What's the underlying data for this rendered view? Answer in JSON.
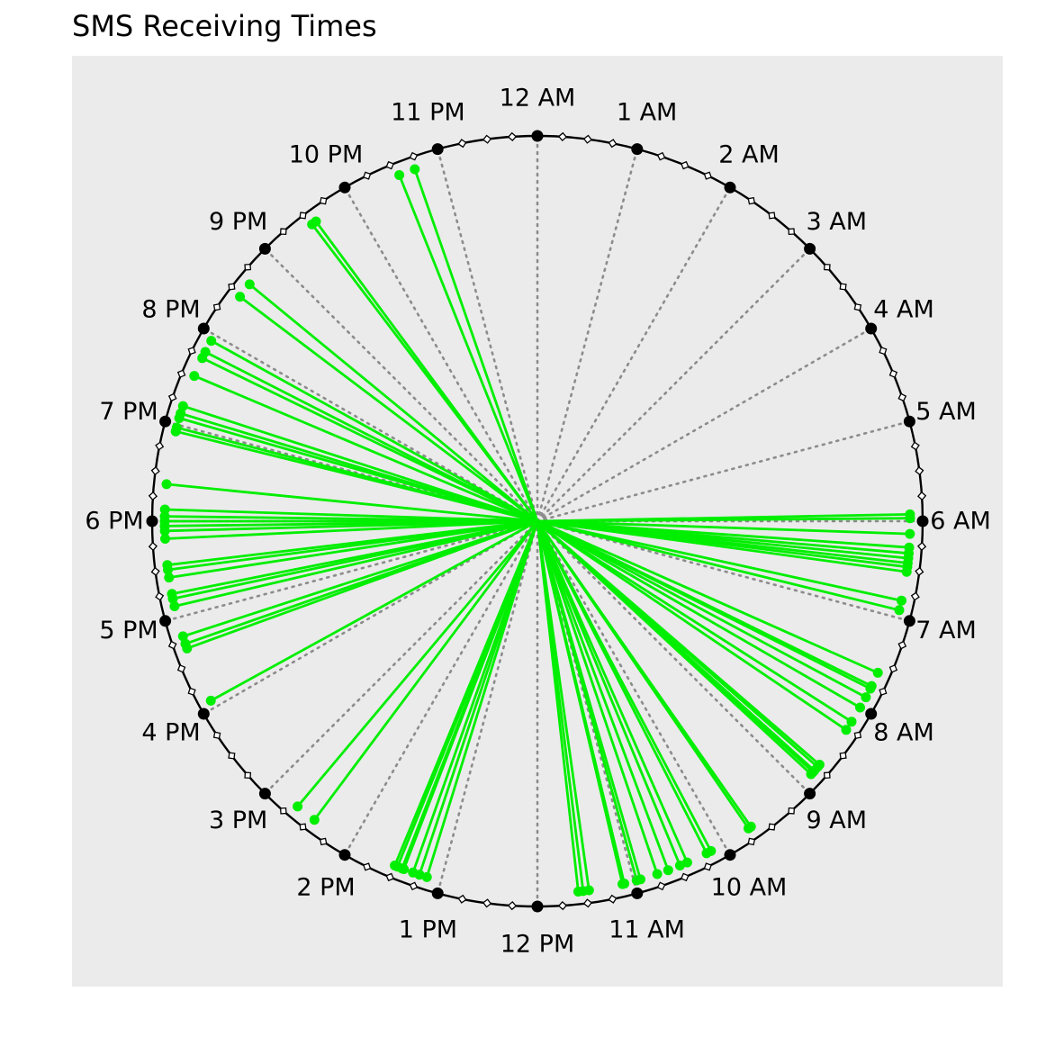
{
  "chart_data": {
    "type": "scatter",
    "subtype": "clock-radial",
    "title": "SMS Receiving Times",
    "hour_labels": [
      "12 AM",
      "1 AM",
      "2 AM",
      "3 AM",
      "4 AM",
      "5 AM",
      "6 AM",
      "7 AM",
      "8 AM",
      "9 AM",
      "10 AM",
      "11 AM",
      "12 PM",
      "1 PM",
      "2 PM",
      "3 PM",
      "4 PM",
      "5 PM",
      "6 PM",
      "7 PM",
      "8 PM",
      "9 PM",
      "10 PM",
      "11 PM"
    ],
    "minor_ticks_per_hour": 4,
    "panel_background": "#ebebeb",
    "clock_color": "#000000",
    "hour_line_color": "#8c8c8c",
    "message_color": "#00ee00",
    "series": [
      {
        "name": "",
        "unit": "hour of day (0-24)",
        "times": [
          5.93,
          5.97,
          6.13,
          6.27,
          6.33,
          6.38,
          6.43,
          6.47,
          6.52,
          6.82,
          6.92,
          7.6,
          7.75,
          7.78,
          7.88,
          8.0,
          8.17,
          8.27,
          8.72,
          8.75,
          8.8,
          8.82,
          8.85,
          9.67,
          9.7,
          10.15,
          10.2,
          10.42,
          10.5,
          10.63,
          10.75,
          10.93,
          10.97,
          11.1,
          11.12,
          11.47,
          11.53,
          11.58,
          13.15,
          13.23,
          13.3,
          13.4,
          13.42,
          13.47,
          13.5,
          14.45,
          14.67,
          16.08,
          16.67,
          16.72,
          16.8,
          17.12,
          17.2,
          17.25,
          17.42,
          17.5,
          17.55,
          17.82,
          17.9,
          17.95,
          18.0,
          18.05,
          18.12,
          18.38,
          18.93,
          18.97,
          19.07,
          19.12,
          19.2,
          19.53,
          19.73,
          19.8,
          19.93,
          20.47,
          20.63,
          21.52,
          21.57,
          22.55,
          22.72
        ]
      }
    ]
  }
}
